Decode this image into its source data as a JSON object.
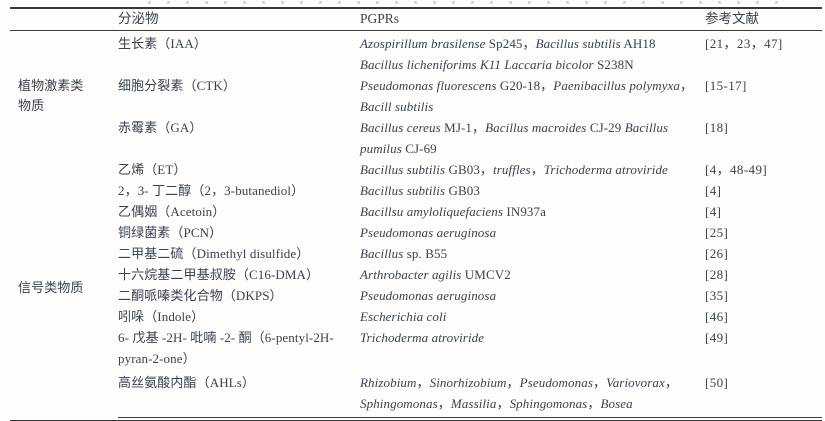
{
  "header": {
    "category": "",
    "secretion": "分泌物",
    "pgprs": "PGPRs",
    "refs": "参考文献"
  },
  "groups": [
    {
      "category": "植物激素类物质",
      "rows": [
        {
          "secretion": "生长素（IAA）",
          "pgprs": [
            {
              "text": "Azospirillum brasilense",
              "italic": true
            },
            {
              "text": " Sp245，",
              "italic": false
            },
            {
              "text": "Bacillus subtilis",
              "italic": true
            },
            {
              "text": " AH18 ",
              "italic": false
            },
            {
              "text": "Bacillus licheniforims K11 Laccaria bicolor",
              "italic": true
            },
            {
              "text": " S238N",
              "italic": false
            }
          ],
          "ref": "[21，23，47]"
        },
        {
          "secretion": "细胞分裂素（CTK）",
          "pgprs": [
            {
              "text": "Pseudomonas fluorescens",
              "italic": true
            },
            {
              "text": " G20-18，",
              "italic": false
            },
            {
              "text": "Paenibacillus polymyxa",
              "italic": true
            },
            {
              "text": "，",
              "italic": false
            },
            {
              "text": "Bacill subtilis",
              "italic": true
            }
          ],
          "ref": "[15-17]"
        },
        {
          "secretion": "赤霉素（GA）",
          "pgprs": [
            {
              "text": "Bacillus cereus",
              "italic": true
            },
            {
              "text": " MJ-1，",
              "italic": false
            },
            {
              "text": "Bacillus macroides",
              "italic": true
            },
            {
              "text": " CJ-29 ",
              "italic": false
            },
            {
              "text": "Bacillus pumilus",
              "italic": true
            },
            {
              "text": " CJ-69",
              "italic": false
            }
          ],
          "ref": "[18]"
        }
      ]
    },
    {
      "category": "信号类物质",
      "rows": [
        {
          "secretion": "乙烯（ET）",
          "pgprs": [
            {
              "text": "Bacillus subtilis",
              "italic": true
            },
            {
              "text": " GB03，",
              "italic": false
            },
            {
              "text": "truffles",
              "italic": true
            },
            {
              "text": "，",
              "italic": false
            },
            {
              "text": "Trichoderma atroviride",
              "italic": true
            }
          ],
          "ref": "[4，48-49]"
        },
        {
          "secretion": "2，3- 丁二醇（2，3-butanediol）",
          "pgprs": [
            {
              "text": "Bacillus subtilis",
              "italic": true
            },
            {
              "text": " GB03",
              "italic": false
            }
          ],
          "ref": "[4]"
        },
        {
          "secretion": "乙偶姻（Acetoin）",
          "pgprs": [
            {
              "text": "Bacillsu amyloliquefaciens",
              "italic": true
            },
            {
              "text": " IN937a",
              "italic": false
            }
          ],
          "ref": "[4]"
        },
        {
          "secretion": "铜绿菌素（PCN）",
          "pgprs": [
            {
              "text": "Pseudomonas aeruginosa",
              "italic": true
            }
          ],
          "ref": "[25]"
        },
        {
          "secretion": "二甲基二硫（Dimethyl disulfide）",
          "pgprs": [
            {
              "text": "Bacillus",
              "italic": true
            },
            {
              "text": " sp. B55",
              "italic": false
            }
          ],
          "ref": "[26]"
        },
        {
          "secretion": "十六烷基二甲基叔胺（C16-DMA）",
          "pgprs": [
            {
              "text": "Arthrobacter agilis",
              "italic": true
            },
            {
              "text": " UMCV2",
              "italic": false
            }
          ],
          "ref": "[28]"
        },
        {
          "secretion": "二酮哌嗪类化合物（DKPS）",
          "pgprs": [
            {
              "text": "Pseudomonas aeruginosa",
              "italic": true
            }
          ],
          "ref": "[35]"
        },
        {
          "secretion": "吲哚（Indole）",
          "pgprs": [
            {
              "text": "Escherichia coli",
              "italic": true
            }
          ],
          "ref": "[46]"
        },
        {
          "secretion": "6- 戊基 -2H- 吡喃 -2- 酮（6-pentyl-2H-pyran-2-one）",
          "pgprs": [
            {
              "text": "Trichoderma atroviride",
              "italic": true
            }
          ],
          "ref": "[49]"
        },
        {
          "secretion": "高丝氨酸内酯（AHLs）",
          "pgprs": [
            {
              "text": "Rhizobium",
              "italic": true
            },
            {
              "text": "，",
              "italic": false
            },
            {
              "text": "Sinorhizobium",
              "italic": true
            },
            {
              "text": "，",
              "italic": false
            },
            {
              "text": "Pseudomonas",
              "italic": true
            },
            {
              "text": "，",
              "italic": false
            },
            {
              "text": "Variovorax",
              "italic": true
            },
            {
              "text": "，",
              "italic": false
            },
            {
              "text": "Sphingomonas",
              "italic": true
            },
            {
              "text": "，",
              "italic": false
            },
            {
              "text": "Massilia",
              "italic": true
            },
            {
              "text": "，",
              "italic": false
            },
            {
              "text": "Sphingomonas",
              "italic": true
            },
            {
              "text": "，",
              "italic": false
            },
            {
              "text": "Bosea",
              "italic": true
            }
          ],
          "ref": "[50]"
        }
      ]
    }
  ]
}
